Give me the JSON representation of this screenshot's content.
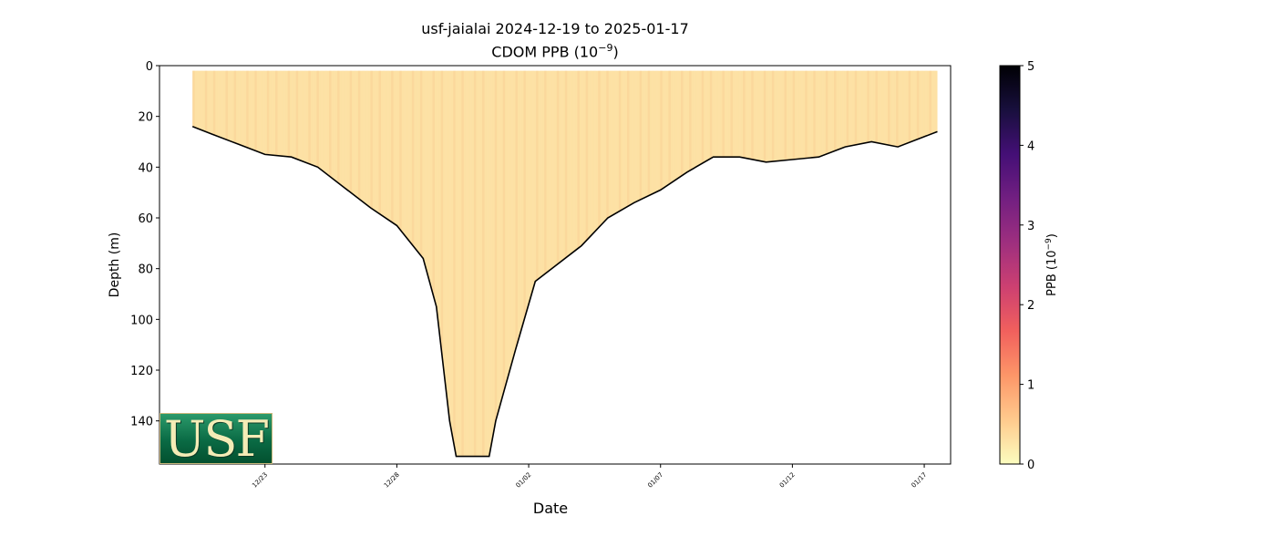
{
  "chart_data": {
    "type": "heatmap",
    "title": "usf-jaialai 2024-12-19 to 2025-01-17",
    "subtitle_prefix": "CDOM PPB (10",
    "subtitle_exp": "−9",
    "subtitle_suffix": ")",
    "xlabel": "Date",
    "ylabel": "Depth (m)",
    "x_range": [
      "2024-12-19",
      "2025-01-18"
    ],
    "y_range": [
      0,
      157
    ],
    "y_inverted": true,
    "x_ticks": [
      {
        "date": "2024-12-23",
        "label": "12/23"
      },
      {
        "date": "2024-12-28",
        "label": "12/28"
      },
      {
        "date": "2025-01-02",
        "label": "01/02"
      },
      {
        "date": "2025-01-07",
        "label": "01/07"
      },
      {
        "date": "2025-01-12",
        "label": "01/12"
      },
      {
        "date": "2025-01-17",
        "label": "01/17"
      }
    ],
    "y_ticks": [
      0,
      20,
      40,
      60,
      80,
      100,
      120,
      140
    ],
    "data_start": "2024-12-20 06:00",
    "data_end": "2025-01-17 12:00",
    "surface_depth_m": 2,
    "max_depth_profile": [
      {
        "date": "2024-12-20 06:00",
        "depth": 24
      },
      {
        "date": "2024-12-21 00:00",
        "depth": 27
      },
      {
        "date": "2024-12-22 00:00",
        "depth": 31
      },
      {
        "date": "2024-12-23 00:00",
        "depth": 35
      },
      {
        "date": "2024-12-24 00:00",
        "depth": 36
      },
      {
        "date": "2024-12-25 00:00",
        "depth": 40
      },
      {
        "date": "2024-12-26 00:00",
        "depth": 48
      },
      {
        "date": "2024-12-27 00:00",
        "depth": 56
      },
      {
        "date": "2024-12-28 00:00",
        "depth": 63
      },
      {
        "date": "2024-12-29 00:00",
        "depth": 76
      },
      {
        "date": "2024-12-29 12:00",
        "depth": 95
      },
      {
        "date": "2024-12-30 00:00",
        "depth": 140
      },
      {
        "date": "2024-12-30 06:00",
        "depth": 154
      },
      {
        "date": "2024-12-31 12:00",
        "depth": 154
      },
      {
        "date": "2024-12-31 18:00",
        "depth": 140
      },
      {
        "date": "2025-01-01 12:00",
        "depth": 112
      },
      {
        "date": "2025-01-02 06:00",
        "depth": 85
      },
      {
        "date": "2025-01-03 00:00",
        "depth": 79
      },
      {
        "date": "2025-01-04 00:00",
        "depth": 71
      },
      {
        "date": "2025-01-05 00:00",
        "depth": 60
      },
      {
        "date": "2025-01-06 00:00",
        "depth": 54
      },
      {
        "date": "2025-01-07 00:00",
        "depth": 49
      },
      {
        "date": "2025-01-08 00:00",
        "depth": 42
      },
      {
        "date": "2025-01-09 00:00",
        "depth": 36
      },
      {
        "date": "2025-01-10 00:00",
        "depth": 36
      },
      {
        "date": "2025-01-11 00:00",
        "depth": 38
      },
      {
        "date": "2025-01-12 00:00",
        "depth": 37
      },
      {
        "date": "2025-01-13 00:00",
        "depth": 36
      },
      {
        "date": "2025-01-14 00:00",
        "depth": 32
      },
      {
        "date": "2025-01-15 00:00",
        "depth": 30
      },
      {
        "date": "2025-01-16 00:00",
        "depth": 32
      },
      {
        "date": "2025-01-17 00:00",
        "depth": 28
      },
      {
        "date": "2025-01-17 12:00",
        "depth": 26
      }
    ],
    "cell_value_approx": 0.3,
    "colorbar": {
      "label_prefix": "PPB (10",
      "label_exp": "−9",
      "label_suffix": ")",
      "range": [
        0,
        5
      ],
      "ticks": [
        0,
        1,
        2,
        3,
        4,
        5
      ],
      "colormap": "magma_r",
      "stops": [
        "#fcfdbf",
        "#feca8d",
        "#fd9668",
        "#f1605d",
        "#cd4071",
        "#9e2f7f",
        "#721f81",
        "#440f76",
        "#180f3d",
        "#000004"
      ]
    },
    "grid": false
  },
  "logo": {
    "text": "USF",
    "colors": {
      "bg_top": "#2b9a6b",
      "bg_bottom": "#03502f",
      "text": "#f4ecb6"
    }
  }
}
